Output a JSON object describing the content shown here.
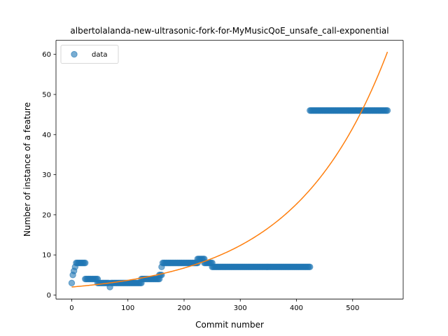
{
  "chart_data": {
    "type": "scatter",
    "title": "albertolalanda-new-ultrasonic-fork-for-MyMusicQoE_unsafe_call-exponential",
    "xlabel": "Commit number",
    "ylabel": "Number of instance of a feature",
    "xlim": [
      -28,
      590
    ],
    "ylim": [
      -1,
      63.5
    ],
    "xticks": [
      0,
      100,
      200,
      300,
      400,
      500
    ],
    "yticks": [
      0,
      10,
      20,
      30,
      40,
      50,
      60
    ],
    "grid": false,
    "legend_position": "top-left",
    "colors": {
      "data": "#1f77b4",
      "fit": "#ff7f0e"
    },
    "series": [
      {
        "name": "data",
        "kind": "points",
        "segments": [
          {
            "x": [
              0,
              0
            ],
            "y": 3
          },
          {
            "x": [
              2,
              2
            ],
            "y": 5
          },
          {
            "x": [
              4,
              4
            ],
            "y": 6
          },
          {
            "x": [
              6,
              6
            ],
            "y": 7
          },
          {
            "x": [
              8,
              24
            ],
            "y": 8
          },
          {
            "x": [
              24,
              46
            ],
            "y": 4
          },
          {
            "x": [
              46,
              66
            ],
            "y": 3
          },
          {
            "x": [
              68,
              68
            ],
            "y": 2
          },
          {
            "x": [
              70,
              124
            ],
            "y": 3
          },
          {
            "x": [
              124,
              156
            ],
            "y": 4
          },
          {
            "x": [
              156,
              160
            ],
            "y": 5
          },
          {
            "x": [
              160,
              160
            ],
            "y": 7
          },
          {
            "x": [
              162,
              224
            ],
            "y": 8
          },
          {
            "x": [
              224,
              236
            ],
            "y": 9
          },
          {
            "x": [
              236,
              250
            ],
            "y": 8
          },
          {
            "x": [
              250,
              424
            ],
            "y": 7
          },
          {
            "x": [
              424,
              562
            ],
            "y": 46
          }
        ],
        "step": 2
      },
      {
        "kind": "fit",
        "model": "exponential",
        "a": 2.0,
        "b": 0.00607,
        "x_range": [
          0,
          562
        ]
      }
    ]
  }
}
